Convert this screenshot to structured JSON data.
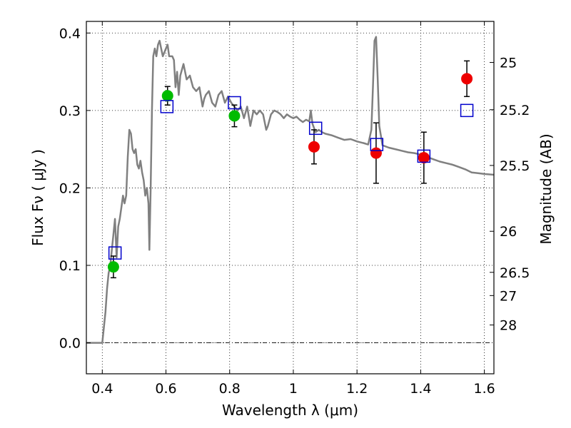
{
  "chart_data": {
    "type": "scatter",
    "title": "",
    "xlabel": "Wavelength  λ (μm)",
    "ylabel": "Flux  Fν  ( μJy )",
    "y2label": "Magnitude (AB)",
    "xlim": [
      0.35,
      1.63
    ],
    "ylim": [
      -0.04,
      0.415
    ],
    "grid": true,
    "x_ticks": [
      {
        "value": 0.4,
        "label": "0.4"
      },
      {
        "value": 0.6,
        "label": "0.6"
      },
      {
        "value": 0.8,
        "label": "0.8"
      },
      {
        "value": 1.0,
        "label": "1"
      },
      {
        "value": 1.2,
        "label": "1.2"
      },
      {
        "value": 1.4,
        "label": "1.4"
      },
      {
        "value": 1.6,
        "label": "1.6"
      }
    ],
    "y_ticks": [
      {
        "value": 0.0,
        "label": "0.0"
      },
      {
        "value": 0.1,
        "label": "0.1"
      },
      {
        "value": 0.2,
        "label": "0.2"
      },
      {
        "value": 0.3,
        "label": "0.3"
      },
      {
        "value": 0.4,
        "label": "0.4"
      }
    ],
    "mag_ticks": [
      {
        "label": "25",
        "flux": 0.362
      },
      {
        "label": "25.2",
        "flux": 0.301
      },
      {
        "label": "25.5",
        "flux": 0.229
      },
      {
        "label": "26",
        "flux": 0.144
      },
      {
        "label": "26.5",
        "flux": 0.091
      },
      {
        "label": "27",
        "flux": 0.061
      },
      {
        "label": "28",
        "flux": 0.023
      }
    ],
    "model_spectrum": {
      "color": "#808080",
      "points": [
        [
          0.35,
          0.0
        ],
        [
          0.4,
          0.0
        ],
        [
          0.41,
          0.04
        ],
        [
          0.415,
          0.07
        ],
        [
          0.42,
          0.09
        ],
        [
          0.425,
          0.1
        ],
        [
          0.43,
          0.12
        ],
        [
          0.435,
          0.14
        ],
        [
          0.44,
          0.16
        ],
        [
          0.445,
          0.11
        ],
        [
          0.45,
          0.15
        ],
        [
          0.455,
          0.16
        ],
        [
          0.46,
          0.175
        ],
        [
          0.465,
          0.19
        ],
        [
          0.47,
          0.18
        ],
        [
          0.475,
          0.19
        ],
        [
          0.48,
          0.24
        ],
        [
          0.485,
          0.275
        ],
        [
          0.49,
          0.27
        ],
        [
          0.495,
          0.25
        ],
        [
          0.5,
          0.245
        ],
        [
          0.505,
          0.25
        ],
        [
          0.51,
          0.23
        ],
        [
          0.515,
          0.225
        ],
        [
          0.52,
          0.235
        ],
        [
          0.525,
          0.22
        ],
        [
          0.53,
          0.21
        ],
        [
          0.535,
          0.19
        ],
        [
          0.54,
          0.2
        ],
        [
          0.545,
          0.18
        ],
        [
          0.548,
          0.12
        ],
        [
          0.552,
          0.2
        ],
        [
          0.556,
          0.3
        ],
        [
          0.56,
          0.37
        ],
        [
          0.565,
          0.38
        ],
        [
          0.57,
          0.37
        ],
        [
          0.575,
          0.385
        ],
        [
          0.58,
          0.39
        ],
        [
          0.585,
          0.38
        ],
        [
          0.59,
          0.37
        ],
        [
          0.595,
          0.375
        ],
        [
          0.6,
          0.38
        ],
        [
          0.605,
          0.385
        ],
        [
          0.61,
          0.37
        ],
        [
          0.62,
          0.37
        ],
        [
          0.625,
          0.365
        ],
        [
          0.63,
          0.33
        ],
        [
          0.635,
          0.35
        ],
        [
          0.64,
          0.32
        ],
        [
          0.645,
          0.345
        ],
        [
          0.655,
          0.36
        ],
        [
          0.665,
          0.34
        ],
        [
          0.675,
          0.345
        ],
        [
          0.685,
          0.33
        ],
        [
          0.695,
          0.325
        ],
        [
          0.705,
          0.33
        ],
        [
          0.715,
          0.305
        ],
        [
          0.72,
          0.315
        ],
        [
          0.725,
          0.32
        ],
        [
          0.735,
          0.325
        ],
        [
          0.745,
          0.31
        ],
        [
          0.755,
          0.305
        ],
        [
          0.765,
          0.32
        ],
        [
          0.775,
          0.325
        ],
        [
          0.785,
          0.31
        ],
        [
          0.795,
          0.318
        ],
        [
          0.805,
          0.31
        ],
        [
          0.815,
          0.305
        ],
        [
          0.825,
          0.3
        ],
        [
          0.835,
          0.305
        ],
        [
          0.845,
          0.29
        ],
        [
          0.855,
          0.305
        ],
        [
          0.865,
          0.28
        ],
        [
          0.875,
          0.3
        ],
        [
          0.885,
          0.295
        ],
        [
          0.895,
          0.3
        ],
        [
          0.905,
          0.295
        ],
        [
          0.915,
          0.275
        ],
        [
          0.92,
          0.28
        ],
        [
          0.93,
          0.295
        ],
        [
          0.94,
          0.3
        ],
        [
          0.95,
          0.298
        ],
        [
          0.96,
          0.295
        ],
        [
          0.97,
          0.29
        ],
        [
          0.98,
          0.295
        ],
        [
          0.99,
          0.292
        ],
        [
          1.0,
          0.29
        ],
        [
          1.01,
          0.292
        ],
        [
          1.02,
          0.288
        ],
        [
          1.03,
          0.285
        ],
        [
          1.04,
          0.288
        ],
        [
          1.05,
          0.286
        ],
        [
          1.055,
          0.3
        ],
        [
          1.06,
          0.283
        ],
        [
          1.07,
          0.272
        ],
        [
          1.08,
          0.275
        ],
        [
          1.09,
          0.272
        ],
        [
          1.1,
          0.27
        ],
        [
          1.12,
          0.268
        ],
        [
          1.14,
          0.265
        ],
        [
          1.16,
          0.262
        ],
        [
          1.18,
          0.263
        ],
        [
          1.2,
          0.26
        ],
        [
          1.22,
          0.258
        ],
        [
          1.235,
          0.256
        ],
        [
          1.245,
          0.275
        ],
        [
          1.25,
          0.33
        ],
        [
          1.255,
          0.39
        ],
        [
          1.26,
          0.395
        ],
        [
          1.265,
          0.34
        ],
        [
          1.27,
          0.28
        ],
        [
          1.28,
          0.255
        ],
        [
          1.3,
          0.252
        ],
        [
          1.32,
          0.25
        ],
        [
          1.34,
          0.248
        ],
        [
          1.36,
          0.246
        ],
        [
          1.38,
          0.245
        ],
        [
          1.4,
          0.243
        ],
        [
          1.42,
          0.24
        ],
        [
          1.44,
          0.237
        ],
        [
          1.46,
          0.234
        ],
        [
          1.48,
          0.232
        ],
        [
          1.5,
          0.23
        ],
        [
          1.52,
          0.227
        ],
        [
          1.54,
          0.224
        ],
        [
          1.56,
          0.22
        ],
        [
          1.58,
          0.219
        ],
        [
          1.6,
          0.218
        ],
        [
          1.63,
          0.217
        ]
      ]
    },
    "series": [
      {
        "marker": "circle",
        "color": "#00bb00",
        "points": [
          {
            "x": 0.435,
            "y": 0.098,
            "err": 0.014
          },
          {
            "x": 0.605,
            "y": 0.319,
            "err": 0.012
          },
          {
            "x": 0.815,
            "y": 0.293,
            "err": 0.014
          }
        ]
      },
      {
        "marker": "circle",
        "color": "#ee0000",
        "points": [
          {
            "x": 1.065,
            "y": 0.253,
            "err": 0.022
          },
          {
            "x": 1.26,
            "y": 0.245,
            "err": 0.039
          },
          {
            "x": 1.41,
            "y": 0.239,
            "err": 0.033
          },
          {
            "x": 1.545,
            "y": 0.341,
            "err": 0.023
          }
        ]
      },
      {
        "marker": "open-square",
        "color": "#0000cc",
        "points": [
          {
            "x": 0.44,
            "y": 0.116
          },
          {
            "x": 0.603,
            "y": 0.305
          },
          {
            "x": 0.815,
            "y": 0.31
          },
          {
            "x": 1.07,
            "y": 0.277
          },
          {
            "x": 1.262,
            "y": 0.256
          },
          {
            "x": 1.41,
            "y": 0.241
          },
          {
            "x": 1.545,
            "y": 0.3
          }
        ]
      }
    ]
  }
}
